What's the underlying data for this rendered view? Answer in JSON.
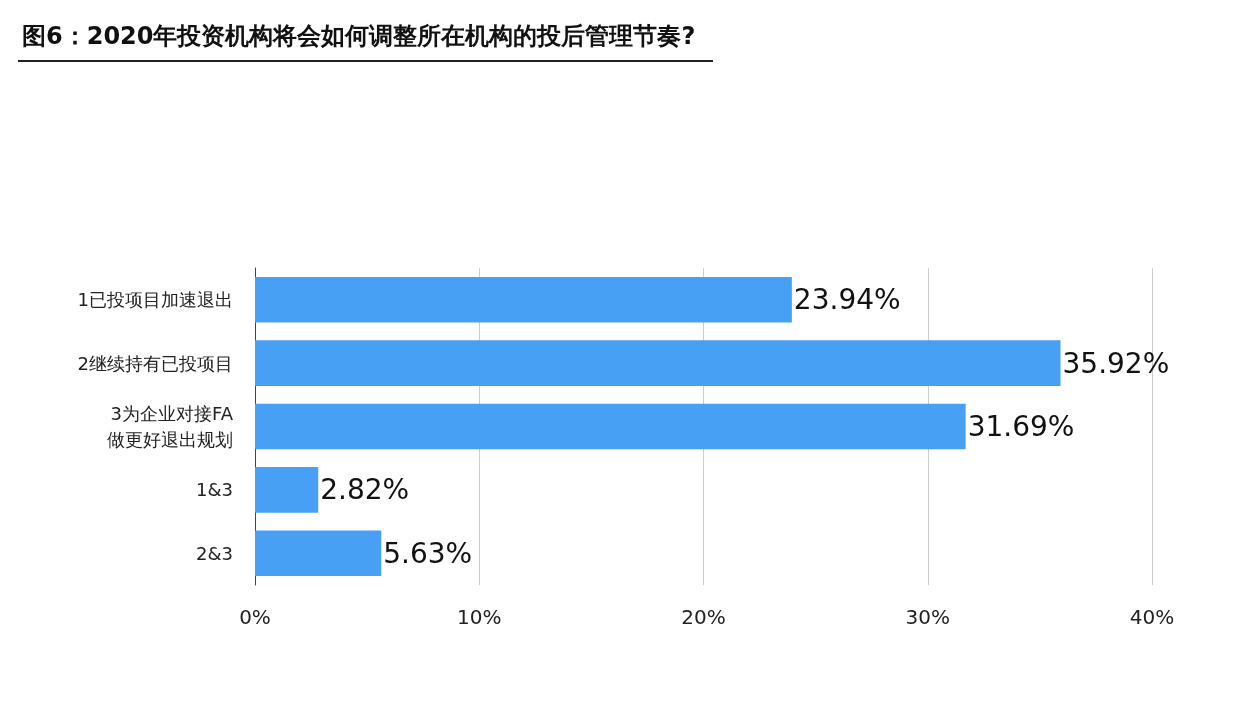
{
  "chart_data": {
    "type": "bar",
    "orientation": "horizontal",
    "title": "图6：2020年投资机构将会如何调整所在机构的投后管理节奏?",
    "categories": [
      "1已投项目加速退出",
      "2继续持有已投项目",
      "3为企业对接FA\n做更好退出规划",
      "1&3",
      "2&3"
    ],
    "values": [
      23.94,
      35.92,
      31.69,
      2.82,
      5.63
    ],
    "value_labels": [
      "23.94%",
      "35.92%",
      "31.69%",
      "2.82%",
      "5.63%"
    ],
    "color": "#48a0f5",
    "xlim": [
      0,
      40
    ],
    "xticks": [
      {
        "value": 0,
        "label": "0%"
      },
      {
        "value": 10,
        "label": "10%"
      },
      {
        "value": 20,
        "label": "20%"
      },
      {
        "value": 30,
        "label": "30%"
      },
      {
        "value": 40,
        "label": "40%"
      }
    ],
    "grid": "x"
  }
}
